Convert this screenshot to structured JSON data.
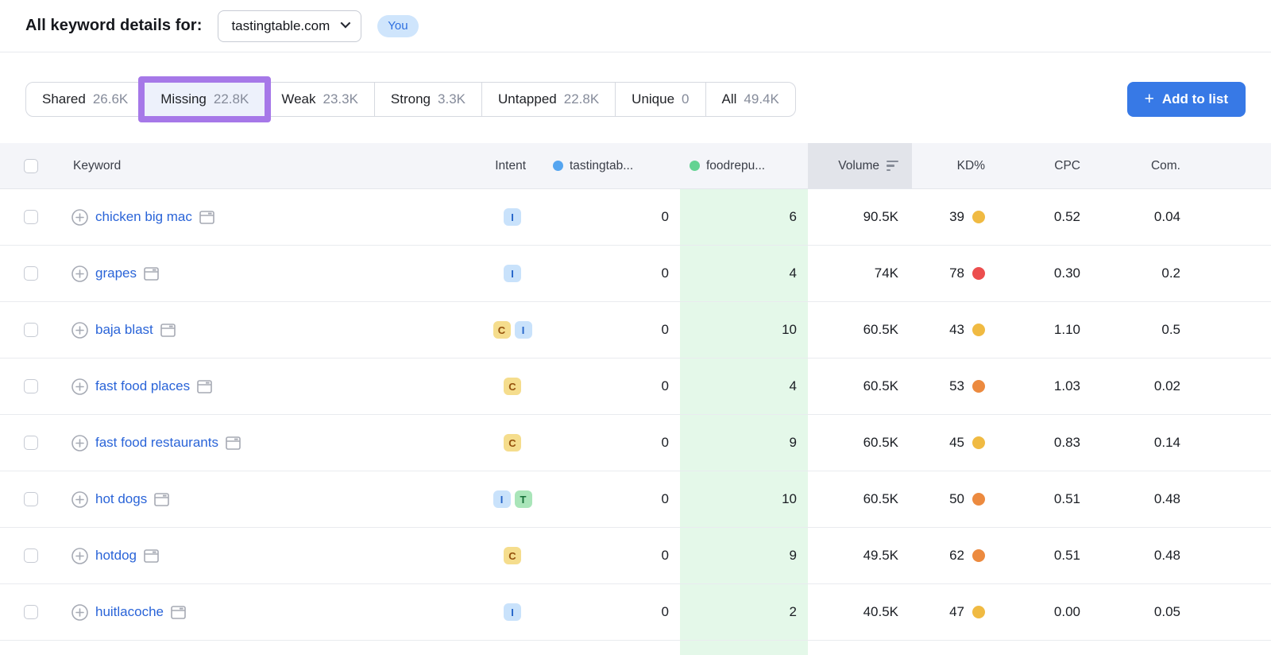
{
  "header": {
    "title": "All keyword details for:",
    "domain_selector": {
      "value": "tastingtable.com"
    },
    "you_badge": "You"
  },
  "tabs": [
    {
      "label": "Shared",
      "count": "26.6K",
      "active": false,
      "annotated": false
    },
    {
      "label": "Missing",
      "count": "22.8K",
      "active": true,
      "annotated": true
    },
    {
      "label": "Weak",
      "count": "23.3K",
      "active": false,
      "annotated": false
    },
    {
      "label": "Strong",
      "count": "3.3K",
      "active": false,
      "annotated": false
    },
    {
      "label": "Untapped",
      "count": "22.8K",
      "active": false,
      "annotated": false
    },
    {
      "label": "Unique",
      "count": "0",
      "active": false,
      "annotated": false
    },
    {
      "label": "All",
      "count": "49.4K",
      "active": false,
      "annotated": false
    }
  ],
  "actions": {
    "add_to_list": "Add to list",
    "plus": "+"
  },
  "table": {
    "headers": {
      "keyword": "Keyword",
      "intent": "Intent",
      "you_domain": "tastingtab...",
      "competitor_domain": "foodrepu...",
      "volume": "Volume",
      "kd": "KD%",
      "cpc": "CPC",
      "com": "Com."
    },
    "rows": [
      {
        "keyword": "chicken big mac",
        "intents": [
          "I"
        ],
        "you_pos": "0",
        "comp_pos": "6",
        "volume": "90.5K",
        "kd": "39",
        "kd_level": "yellow",
        "cpc": "0.52",
        "com": "0.04"
      },
      {
        "keyword": "grapes",
        "intents": [
          "I"
        ],
        "you_pos": "0",
        "comp_pos": "4",
        "volume": "74K",
        "kd": "78",
        "kd_level": "red",
        "cpc": "0.30",
        "com": "0.2"
      },
      {
        "keyword": "baja blast",
        "intents": [
          "C",
          "I"
        ],
        "you_pos": "0",
        "comp_pos": "10",
        "volume": "60.5K",
        "kd": "43",
        "kd_level": "yellow",
        "cpc": "1.10",
        "com": "0.5"
      },
      {
        "keyword": "fast food places",
        "intents": [
          "C"
        ],
        "you_pos": "0",
        "comp_pos": "4",
        "volume": "60.5K",
        "kd": "53",
        "kd_level": "orange",
        "cpc": "1.03",
        "com": "0.02"
      },
      {
        "keyword": "fast food restaurants",
        "intents": [
          "C"
        ],
        "you_pos": "0",
        "comp_pos": "9",
        "volume": "60.5K",
        "kd": "45",
        "kd_level": "yellow",
        "cpc": "0.83",
        "com": "0.14"
      },
      {
        "keyword": "hot dogs",
        "intents": [
          "I",
          "T"
        ],
        "you_pos": "0",
        "comp_pos": "10",
        "volume": "60.5K",
        "kd": "50",
        "kd_level": "orange",
        "cpc": "0.51",
        "com": "0.48"
      },
      {
        "keyword": "hotdog",
        "intents": [
          "C"
        ],
        "you_pos": "0",
        "comp_pos": "9",
        "volume": "49.5K",
        "kd": "62",
        "kd_level": "orange",
        "cpc": "0.51",
        "com": "0.48"
      },
      {
        "keyword": "huitlacoche",
        "intents": [
          "I"
        ],
        "you_pos": "0",
        "comp_pos": "2",
        "volume": "40.5K",
        "kd": "47",
        "kd_level": "yellow",
        "cpc": "0.00",
        "com": "0.05"
      }
    ]
  },
  "colors": {
    "accent_blue": "#3779e6",
    "annotation_purple": "#a678e8",
    "active_tab_bg": "#edf1fb",
    "you_badge_bg": "#cfe5fc",
    "you_badge_text": "#2e6fe0",
    "keyword_link": "#2a64d8",
    "you_domain_dot": "#55a5f0",
    "competitor_dot": "#63d392",
    "competitor_col_bg": "#e4f8e9",
    "volume_header_bg": "#e2e4ea",
    "intent_informational": {
      "bg": "#c9e2fb",
      "text": "#2464c9"
    },
    "intent_commercial": {
      "bg": "#f5dd8d",
      "text": "#94510c"
    },
    "intent_transactional": {
      "bg": "#a9e5b9",
      "text": "#17713a"
    },
    "kd_dots": {
      "yellow": "#f0ba42",
      "orange": "#ec8a3f",
      "red": "#ec4e4e"
    }
  }
}
